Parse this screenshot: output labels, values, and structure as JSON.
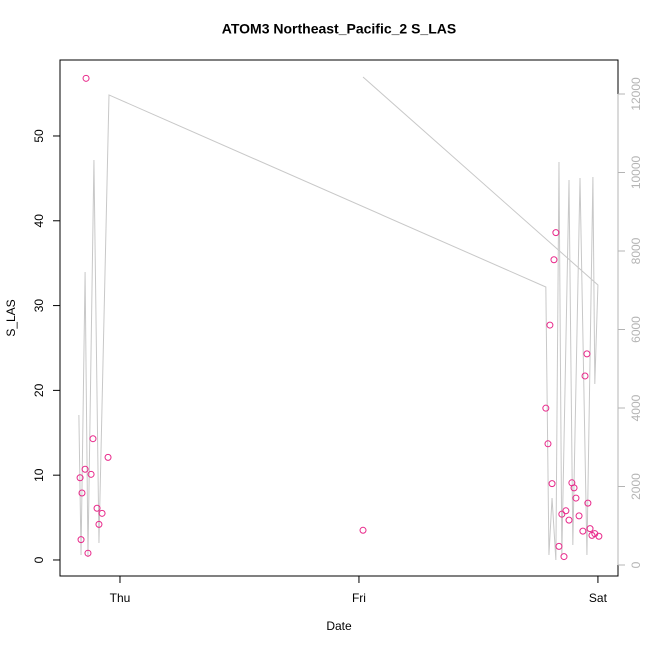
{
  "chart_data": {
    "type": "scatter",
    "title": "ATOM3 Northeast_Pacific_2 S_LAS",
    "x_label": "Date",
    "y_label": "S_LAS",
    "x": [
      -0.167,
      -0.163,
      -0.159,
      -0.146,
      -0.142,
      -0.134,
      -0.121,
      -0.113,
      -0.096,
      -0.088,
      -0.075,
      -0.05,
      1.017,
      1.782,
      1.791,
      1.799,
      1.808,
      1.816,
      1.824,
      1.837,
      1.849,
      1.858,
      1.866,
      1.879,
      1.891,
      1.9,
      1.908,
      1.921,
      1.937,
      1.946,
      1.954,
      1.958,
      1.967,
      1.975,
      1.987,
      2.004
    ],
    "values": [
      9.7,
      2.4,
      7.9,
      10.7,
      56.8,
      0.8,
      10.1,
      14.3,
      6.1,
      4.2,
      5.5,
      12.1,
      3.5,
      17.9,
      13.7,
      27.7,
      9.0,
      35.4,
      38.6,
      1.6,
      5.4,
      0.4,
      5.8,
      4.7,
      9.1,
      8.5,
      7.3,
      5.2,
      3.4,
      21.7,
      24.3,
      6.7,
      3.7,
      2.9,
      3.1,
      2.8
    ],
    "color": "#e8288a",
    "line": {
      "axis": "y2",
      "color": "#c8c8c8",
      "x": [
        -0.172,
        -0.163,
        -0.146,
        -0.134,
        -0.109,
        -0.088,
        -0.046,
        1.782,
        1.795,
        1.808,
        1.824,
        1.837,
        1.849,
        1.879,
        1.895,
        1.925,
        1.954,
        1.979,
        1.987,
        2.0,
        1.017
      ],
      "values": [
        3822,
        255,
        7465,
        204,
        10318,
        560,
        11975,
        7083,
        255,
        1707,
        127,
        10268,
        255,
        9809,
        510,
        9860,
        255,
        9885,
        4611,
        7134,
        12433
      ]
    },
    "xlim": [
      -0.251,
      2.084
    ],
    "xticks": [
      {
        "value": 0,
        "label": "Thu"
      },
      {
        "value": 1,
        "label": "Fri"
      },
      {
        "value": 2,
        "label": "Sat"
      }
    ],
    "ylim": [
      -1.89,
      58.96
    ],
    "yticks": [
      0,
      10,
      20,
      30,
      40,
      50
    ],
    "y2lim": [
      -280,
      12866
    ],
    "y2ticks": [
      0,
      2000,
      4000,
      6000,
      8000,
      10000,
      12000
    ],
    "y2_color": "#b4b4b4"
  }
}
